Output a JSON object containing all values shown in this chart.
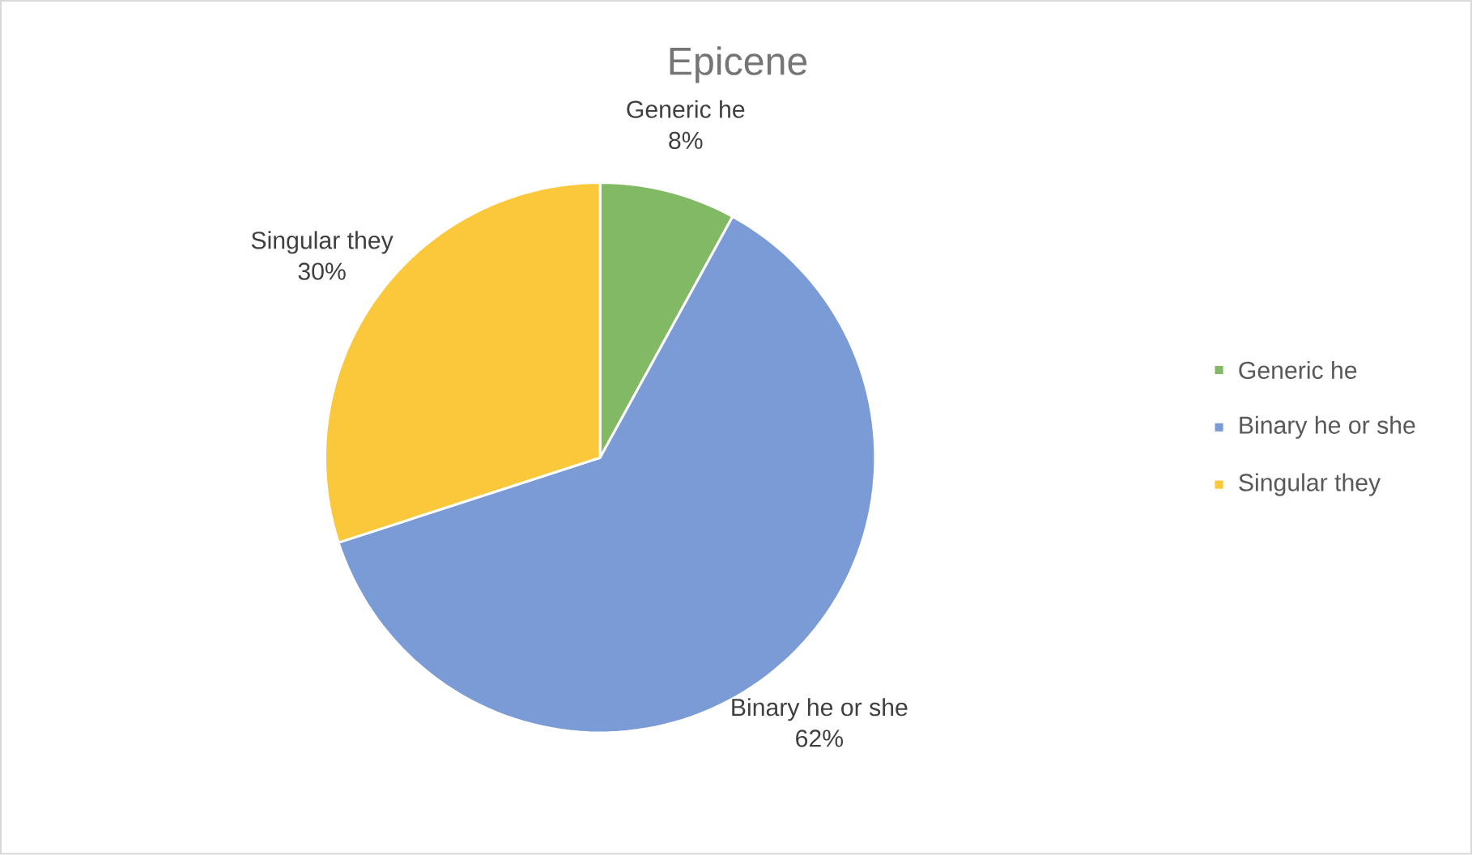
{
  "chart_data": {
    "type": "pie",
    "title": "Epicene",
    "categories": [
      "Generic he",
      "Binary he or she",
      "Singular they"
    ],
    "values": [
      8,
      62,
      30
    ],
    "value_labels": [
      "8%",
      "62%",
      "30%"
    ],
    "colors": [
      "#82b964",
      "#7b9bd6",
      "#fbc83c"
    ],
    "legend": "right"
  }
}
